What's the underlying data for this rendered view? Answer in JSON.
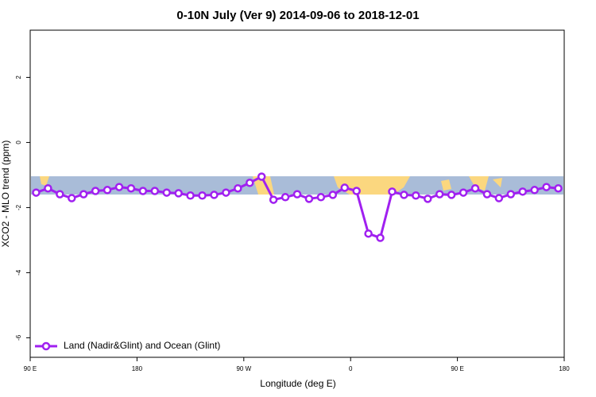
{
  "chart_data": {
    "type": "line",
    "title": "0-10N July (Ver 9)   2014-09-06 to 2018-12-01",
    "xlabel": "Longitude (deg E)",
    "ylabel": "XCO2 - MLO trend (ppm)",
    "x": [
      95,
      105,
      115,
      125,
      135,
      145,
      155,
      165,
      175,
      185,
      195,
      205,
      215,
      225,
      235,
      245,
      255,
      265,
      275,
      285,
      295,
      305,
      315,
      325,
      335,
      345,
      355,
      365,
      375,
      385,
      395,
      405,
      415,
      425,
      435,
      445,
      455,
      465,
      475,
      485,
      495,
      505,
      515,
      525,
      535
    ],
    "series": [
      {
        "name": "Land (Nadir&Glint) and Ocean (Glint)",
        "color": "#a020f0",
        "values": [
          -1.54,
          -1.41,
          -1.59,
          -1.71,
          -1.59,
          -1.49,
          -1.46,
          -1.37,
          -1.41,
          -1.49,
          -1.49,
          -1.54,
          -1.56,
          -1.63,
          -1.63,
          -1.61,
          -1.54,
          -1.41,
          -1.24,
          -1.05,
          -1.76,
          -1.68,
          -1.59,
          -1.73,
          -1.68,
          -1.61,
          -1.39,
          -1.49,
          -2.8,
          -2.93,
          -1.51,
          -1.61,
          -1.63,
          -1.73,
          -1.59,
          -1.61,
          -1.54,
          -1.41,
          -1.59,
          -1.71,
          -1.59,
          -1.51,
          -1.46,
          -1.37,
          -1.41
        ]
      }
    ],
    "xlim": [
      90,
      540
    ],
    "xticks": [
      {
        "value": 90,
        "label": "90 E"
      },
      180,
      {
        "value": 270,
        "label": "90 W"
      },
      {
        "value": 360,
        "label": "0"
      },
      {
        "value": 450,
        "label": "90 E"
      },
      {
        "value": 540,
        "label": "180"
      }
    ],
    "ylim": [
      -6.6,
      3.45
    ],
    "yticks": [
      -6,
      -4,
      -2,
      0,
      2
    ],
    "legend": "bottom-left"
  }
}
